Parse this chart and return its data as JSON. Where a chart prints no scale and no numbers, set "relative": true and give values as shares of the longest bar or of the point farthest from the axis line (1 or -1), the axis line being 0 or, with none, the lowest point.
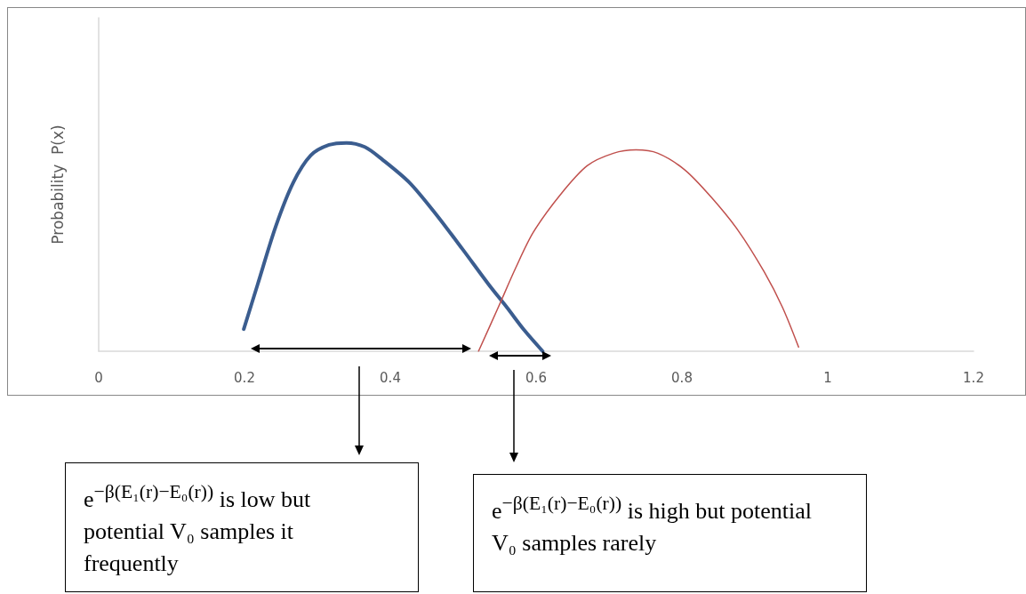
{
  "chart_data": {
    "type": "line",
    "relative": true,
    "ylabel": "Probability  P(x)",
    "xlim": [
      0,
      1.2
    ],
    "xticks": [
      0,
      0.2,
      0.4,
      0.6,
      0.8,
      1,
      1.2
    ],
    "grid": false,
    "marker": "none",
    "line_style": "solid",
    "tick_labels": "x",
    "series": [
      {
        "color": "#3b5d8f",
        "x": [
          0.199,
          0.218,
          0.243,
          0.267,
          0.291,
          0.316,
          0.34,
          0.365,
          0.389,
          0.426,
          0.462,
          0.499,
          0.535,
          0.56,
          0.584,
          0.609
        ],
        "values": [
          0.106,
          0.32,
          0.6,
          0.81,
          0.94,
          0.99,
          1.0,
          0.98,
          0.92,
          0.81,
          0.66,
          0.49,
          0.32,
          0.21,
          0.1,
          0
        ]
      },
      {
        "color": "#c0504d",
        "x": [
          0.521,
          0.548,
          0.572,
          0.596,
          0.633,
          0.67,
          0.706,
          0.737,
          0.767,
          0.804,
          0.84,
          0.877,
          0.913,
          0.938,
          0.96
        ],
        "values": [
          0,
          0.21,
          0.4,
          0.57,
          0.75,
          0.89,
          0.95,
          0.966,
          0.95,
          0.87,
          0.74,
          0.58,
          0.38,
          0.21,
          0.02
        ]
      }
    ],
    "annotations": [
      "e$^{−β(E₁(r)−E₀(r))}$ is low but potential V₀ samples it frequently",
      "e$^{−β(E₁(r)−E₀(r))}$ is high but potential V₀ samples rarely"
    ]
  }
}
